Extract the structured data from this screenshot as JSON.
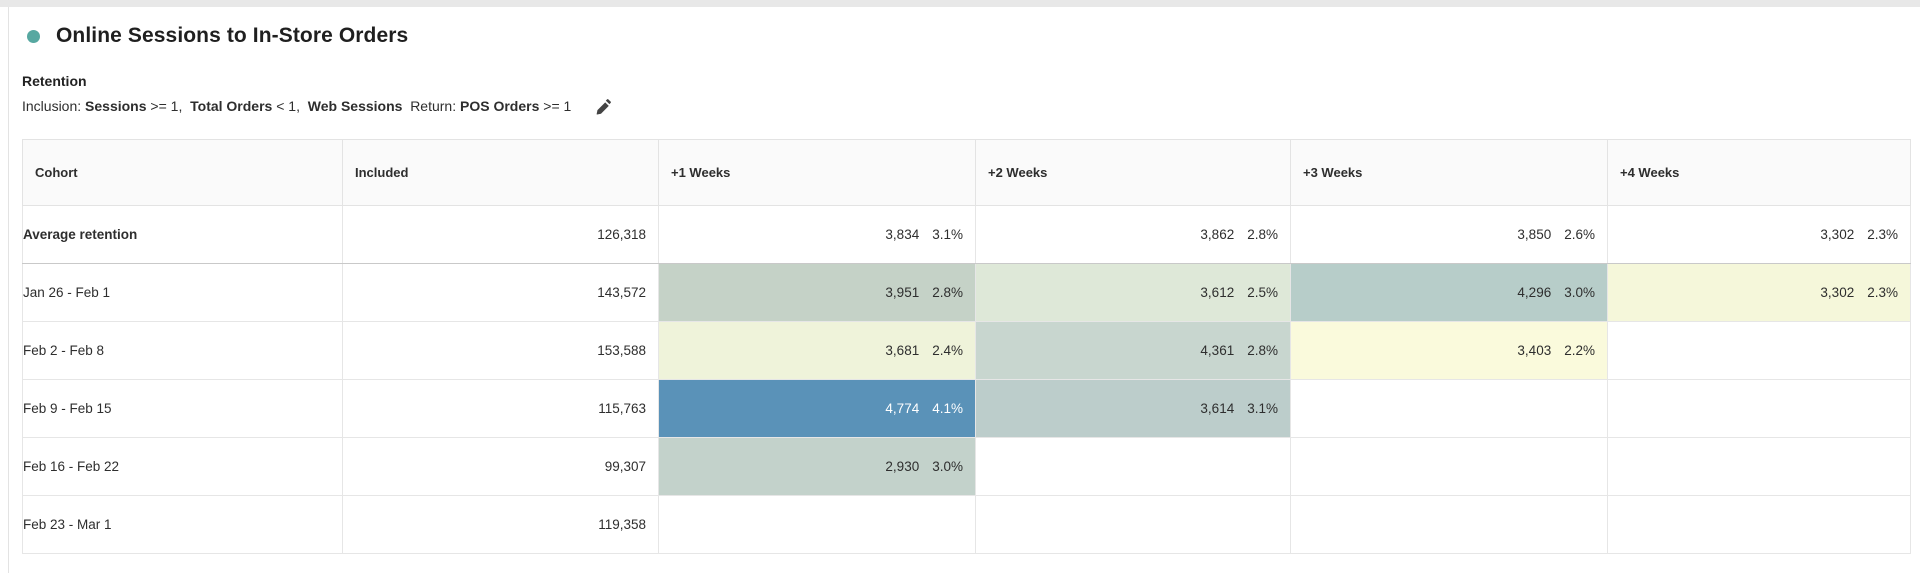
{
  "header": {
    "title": "Online Sessions to In-Store Orders",
    "dot_color": "#57a8a1",
    "subtitle": "Retention",
    "inclusion_segments": [
      {
        "text": "Inclusion: ",
        "bold": false
      },
      {
        "text": "Sessions",
        "bold": true
      },
      {
        "text": " >= 1,  ",
        "bold": false
      },
      {
        "text": "Total Orders",
        "bold": true
      },
      {
        "text": " < 1,  ",
        "bold": false
      },
      {
        "text": "Web Sessions",
        "bold": true
      },
      {
        "text": "  Return: ",
        "bold": false
      },
      {
        "text": "POS Orders",
        "bold": true
      },
      {
        "text": " >= 1",
        "bold": false
      }
    ],
    "edit_icon": "pencil-icon"
  },
  "table": {
    "columns": [
      "Cohort",
      "Included",
      "+1 Weeks",
      "+2 Weeks",
      "+3 Weeks",
      "+4 Weeks"
    ],
    "rows": [
      {
        "cohort": "Average retention",
        "bold": true,
        "included": "126,318",
        "cells": [
          {
            "count": "3,834",
            "pct": "3.1%",
            "bg": "",
            "fg": ""
          },
          {
            "count": "3,862",
            "pct": "2.8%",
            "bg": "",
            "fg": ""
          },
          {
            "count": "3,850",
            "pct": "2.6%",
            "bg": "",
            "fg": ""
          },
          {
            "count": "3,302",
            "pct": "2.3%",
            "bg": "",
            "fg": ""
          }
        ]
      },
      {
        "cohort": "Jan 26 - Feb 1",
        "bold": false,
        "included": "143,572",
        "cells": [
          {
            "count": "3,951",
            "pct": "2.8%",
            "bg": "#c5d2c7",
            "fg": ""
          },
          {
            "count": "3,612",
            "pct": "2.5%",
            "bg": "#dee8d8",
            "fg": ""
          },
          {
            "count": "4,296",
            "pct": "3.0%",
            "bg": "#b7cdc9",
            "fg": ""
          },
          {
            "count": "3,302",
            "pct": "2.3%",
            "bg": "#f5f7da",
            "fg": ""
          }
        ]
      },
      {
        "cohort": "Feb 2 - Feb 8",
        "bold": false,
        "included": "153,588",
        "cells": [
          {
            "count": "3,681",
            "pct": "2.4%",
            "bg": "#eff3da",
            "fg": ""
          },
          {
            "count": "4,361",
            "pct": "2.8%",
            "bg": "#c8d6cf",
            "fg": ""
          },
          {
            "count": "3,403",
            "pct": "2.2%",
            "bg": "#fafadc",
            "fg": ""
          },
          null
        ]
      },
      {
        "cohort": "Feb 9 - Feb 15",
        "bold": false,
        "included": "115,763",
        "cells": [
          {
            "count": "4,774",
            "pct": "4.1%",
            "bg": "#5a92b8",
            "fg": "#ffffff"
          },
          {
            "count": "3,614",
            "pct": "3.1%",
            "bg": "#bccdcb",
            "fg": ""
          },
          null,
          null
        ]
      },
      {
        "cohort": "Feb 16 - Feb 22",
        "bold": false,
        "included": "99,307",
        "cells": [
          {
            "count": "2,930",
            "pct": "3.0%",
            "bg": "#c3d2cb",
            "fg": ""
          },
          null,
          null,
          null
        ]
      },
      {
        "cohort": "Feb 23 - Mar 1",
        "bold": false,
        "included": "119,358",
        "cells": [
          null,
          null,
          null,
          null
        ]
      }
    ]
  }
}
